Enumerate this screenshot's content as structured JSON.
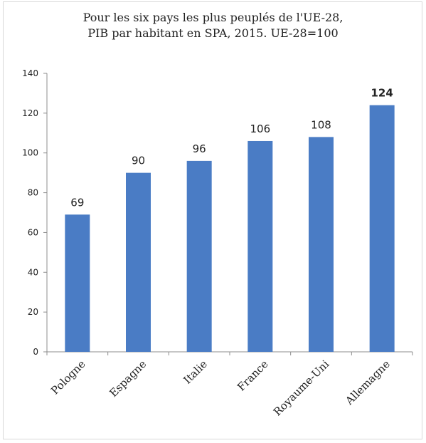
{
  "chart_data": {
    "type": "bar",
    "title": "Pour les six pays les plus peuplés de l'UE-28,\nPIB par habitant en SPA, 2015. UE-28=100",
    "categories": [
      "Pologne",
      "Espagne",
      "Italie",
      "France",
      "Royaume-Uni",
      "Allemagne"
    ],
    "values": [
      69,
      90,
      96,
      106,
      108,
      124
    ],
    "data_labels": [
      "69",
      "90",
      "96",
      "106",
      "108",
      "124"
    ],
    "highlighted_label_index": 5,
    "y_ticks": [
      "0",
      "20",
      "40",
      "60",
      "80",
      "100",
      "120",
      "140"
    ],
    "ylim": [
      0,
      140
    ],
    "xlabel": "",
    "ylabel": "",
    "grid": false,
    "bar_color": "#4a7cc5"
  }
}
